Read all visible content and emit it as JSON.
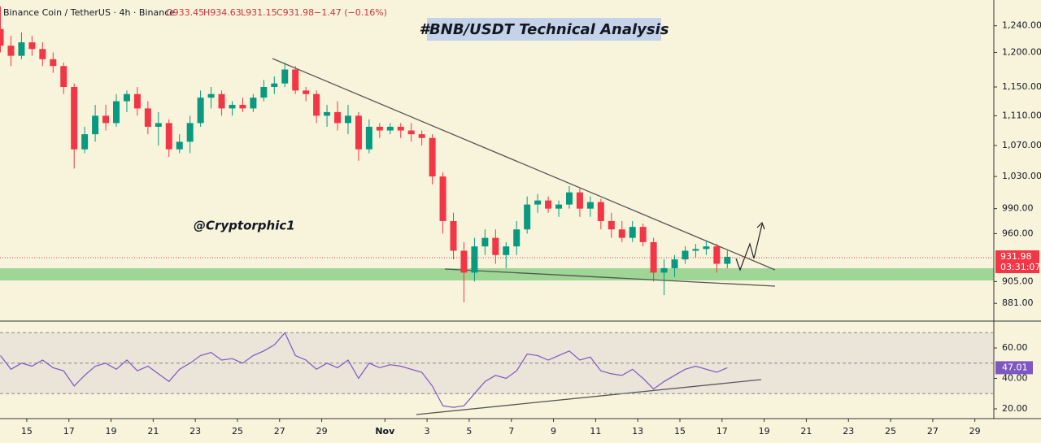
{
  "header": {
    "symbol": "Binance Coin / TetherUS · 4h · Binance",
    "open": "O933.45",
    "high": "H934.63",
    "low": "L931.15",
    "close": "C931.98",
    "change": "−1.47 (−0.16%)"
  },
  "chart_data": [
    {
      "type": "candlestick",
      "title": "#BNB/USDT Technical Analysis",
      "annotation": "@Cryptorphic1",
      "log_scale": true,
      "up_color": "#089981",
      "down_color": "#f23645",
      "x": [
        13.75,
        14.25,
        14.75,
        15.25,
        15.75,
        16.25,
        16.75,
        17.25,
        17.75,
        18.25,
        18.75,
        19.25,
        19.75,
        20.25,
        20.75,
        21.25,
        21.75,
        22.25,
        22.75,
        23.25,
        23.75,
        24.25,
        24.75,
        25.25,
        25.75,
        26.25,
        26.75,
        27.25,
        27.75,
        28.25,
        28.75,
        29.25,
        29.75,
        30.25,
        30.75,
        31.25,
        31.75,
        32.25,
        32.75,
        33.25,
        33.75,
        34.25,
        34.75,
        35.25,
        35.75,
        36.25,
        36.75,
        37.25,
        37.75,
        38.25,
        38.75,
        39.25,
        39.75,
        40.25,
        40.75,
        41.25,
        41.75,
        42.25,
        42.75,
        43.25,
        43.75,
        44.25,
        44.75,
        45.25,
        45.75,
        46.25,
        46.75,
        47.25,
        47.75,
        48.25
      ],
      "open": [
        1235,
        1210,
        1195,
        1215,
        1205,
        1190,
        1180,
        1150,
        1065,
        1085,
        1110,
        1100,
        1130,
        1140,
        1120,
        1095,
        1100,
        1065,
        1075,
        1100,
        1135,
        1140,
        1120,
        1125,
        1120,
        1135,
        1150,
        1155,
        1175,
        1145,
        1140,
        1110,
        1115,
        1100,
        1110,
        1065,
        1095,
        1090,
        1095,
        1090,
        1085,
        1080,
        1030,
        975,
        940,
        915,
        945,
        955,
        935,
        945,
        965,
        995,
        1000,
        990,
        995,
        1010,
        990,
        998,
        975,
        965,
        955,
        968,
        950,
        915,
        920,
        930,
        940,
        942,
        945,
        925
      ],
      "high": [
        1270,
        1225,
        1230,
        1225,
        1215,
        1200,
        1185,
        1155,
        1095,
        1125,
        1125,
        1140,
        1145,
        1150,
        1130,
        1115,
        1105,
        1085,
        1110,
        1145,
        1150,
        1145,
        1130,
        1135,
        1140,
        1160,
        1165,
        1185,
        1180,
        1150,
        1145,
        1125,
        1130,
        1125,
        1115,
        1105,
        1100,
        1100,
        1100,
        1100,
        1090,
        1085,
        1035,
        985,
        950,
        955,
        965,
        965,
        950,
        975,
        1005,
        1008,
        1005,
        1000,
        1018,
        1015,
        1005,
        1002,
        985,
        975,
        975,
        972,
        955,
        930,
        935,
        945,
        948,
        952,
        948,
        940
      ],
      "low": [
        1200,
        1180,
        1190,
        1195,
        1180,
        1170,
        1140,
        1040,
        1060,
        1075,
        1090,
        1095,
        1115,
        1110,
        1085,
        1070,
        1055,
        1060,
        1060,
        1095,
        1120,
        1110,
        1110,
        1115,
        1115,
        1130,
        1140,
        1150,
        1140,
        1130,
        1100,
        1095,
        1090,
        1085,
        1050,
        1060,
        1080,
        1085,
        1080,
        1075,
        1070,
        1020,
        960,
        930,
        882,
        905,
        935,
        925,
        920,
        935,
        960,
        985,
        985,
        980,
        990,
        980,
        980,
        965,
        955,
        950,
        950,
        945,
        905,
        890,
        910,
        925,
        932,
        935,
        915,
        920
      ],
      "close": [
        1210,
        1195,
        1215,
        1205,
        1190,
        1180,
        1150,
        1065,
        1085,
        1110,
        1100,
        1130,
        1140,
        1120,
        1095,
        1100,
        1065,
        1075,
        1100,
        1135,
        1140,
        1120,
        1125,
        1120,
        1135,
        1150,
        1155,
        1175,
        1145,
        1140,
        1110,
        1115,
        1100,
        1110,
        1065,
        1095,
        1090,
        1095,
        1090,
        1085,
        1080,
        1030,
        975,
        940,
        915,
        945,
        955,
        935,
        945,
        965,
        995,
        1000,
        990,
        995,
        1010,
        990,
        998,
        975,
        965,
        955,
        968,
        950,
        915,
        920,
        930,
        940,
        942,
        945,
        925,
        933
      ],
      "xlim": [
        13.73,
        60.9
      ],
      "xticks": [
        15,
        17,
        19,
        21,
        23,
        25,
        27,
        29,
        {
          "value": 32,
          "label": "Nov"
        },
        {
          "value": 34,
          "label": "3"
        },
        {
          "value": 36,
          "label": "5"
        },
        {
          "value": 38,
          "label": "7"
        },
        {
          "value": 40,
          "label": "9"
        },
        {
          "value": 42,
          "label": "11"
        },
        {
          "value": 44,
          "label": "13"
        },
        {
          "value": 46,
          "label": "15"
        },
        {
          "value": 48,
          "label": "17"
        },
        {
          "value": 50,
          "label": "19"
        },
        {
          "value": 52,
          "label": "21"
        },
        {
          "value": 54,
          "label": "23"
        },
        {
          "value": 56,
          "label": "25"
        },
        {
          "value": 58,
          "label": "27"
        },
        {
          "value": 60,
          "label": "29"
        }
      ],
      "ylim": [
        862,
        1280
      ],
      "yticks": [
        {
          "value": 1240,
          "label": "1,240.00"
        },
        {
          "value": 1200,
          "label": "1,200.00"
        },
        {
          "value": 1150,
          "label": "1,150.00"
        },
        {
          "value": 1110,
          "label": "1,110.00"
        },
        {
          "value": 1070,
          "label": "1,070.00"
        },
        {
          "value": 1030,
          "label": "1,030.00"
        },
        {
          "value": 990,
          "label": "990.00"
        },
        {
          "value": 960,
          "label": "960.00"
        },
        {
          "value": 905,
          "label": "905.00"
        },
        {
          "value": 881,
          "label": "881.00"
        }
      ],
      "last_price": 931.98,
      "countdown": "03:31:07"
    },
    {
      "type": "line",
      "color": "#7e57c2",
      "x": [
        13.75,
        14.25,
        14.75,
        15.25,
        15.75,
        16.25,
        16.75,
        17.25,
        17.75,
        18.25,
        18.75,
        19.25,
        19.75,
        20.25,
        20.75,
        21.25,
        21.75,
        22.25,
        22.75,
        23.25,
        23.75,
        24.25,
        24.75,
        25.25,
        25.75,
        26.25,
        26.75,
        27.25,
        27.75,
        28.25,
        28.75,
        29.25,
        29.75,
        30.25,
        30.75,
        31.25,
        31.75,
        32.25,
        32.75,
        33.25,
        33.75,
        34.25,
        34.75,
        35.25,
        35.75,
        36.25,
        36.75,
        37.25,
        37.75,
        38.25,
        38.75,
        39.25,
        39.75,
        40.25,
        40.75,
        41.25,
        41.75,
        42.25,
        42.75,
        43.25,
        43.75,
        44.25,
        44.75,
        45.25,
        45.75,
        46.25,
        46.75,
        47.25,
        47.75,
        48.25
      ],
      "values": [
        55,
        46,
        50,
        48,
        52,
        47,
        45,
        35,
        42,
        48,
        50,
        46,
        52,
        45,
        48,
        43,
        38,
        46,
        50,
        55,
        57,
        52,
        53,
        50,
        55,
        58,
        62,
        70,
        55,
        52,
        46,
        50,
        47,
        52,
        40,
        50,
        47,
        49,
        48,
        46,
        44,
        35,
        22,
        21,
        22,
        30,
        38,
        42,
        40,
        45,
        56,
        55,
        52,
        55,
        58,
        52,
        54,
        45,
        43,
        42,
        46,
        40,
        33,
        38,
        42,
        46,
        48,
        46,
        44,
        47.01
      ],
      "xlim": [
        13.73,
        60.9
      ],
      "ylim": [
        13.6,
        72.3
      ],
      "yticks": [
        {
          "value": 60,
          "label": "60.00"
        },
        {
          "value": 40,
          "label": "40.00"
        },
        {
          "value": 20,
          "label": "20.00"
        }
      ],
      "bands": [
        70,
        50,
        30
      ],
      "last_value": 47.01
    }
  ]
}
